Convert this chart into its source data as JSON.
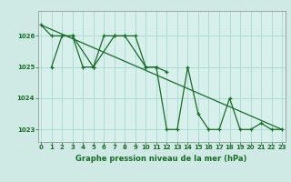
{
  "title": "Graphe pression niveau de la mer (hPa)",
  "background_color": "#cfe9e5",
  "plot_bg_color": "#d8f0ec",
  "grid_color": "#a8d8d0",
  "line_color": "#1a6b2a",
  "tick_color": "#1a6b2a",
  "spine_color": "#888888",
  "y1_x": [
    0,
    1,
    2,
    3,
    4,
    5,
    6,
    7,
    8,
    9,
    10,
    11,
    12
  ],
  "y1_y": [
    1026.35,
    1026.0,
    1026.0,
    1026.0,
    1025.0,
    1025.0,
    1026.0,
    1026.0,
    1026.0,
    1026.0,
    1025.0,
    1025.0,
    1024.85
  ],
  "y2_x": [
    1,
    2,
    3,
    5,
    7,
    8,
    10,
    11,
    12,
    13,
    14,
    15,
    16,
    17,
    18,
    19,
    20,
    21,
    22,
    23
  ],
  "y2_y": [
    1025.0,
    1026.0,
    1026.0,
    1025.0,
    1026.0,
    1026.0,
    1025.0,
    1025.0,
    1023.0,
    1023.0,
    1025.0,
    1023.5,
    1023.0,
    1023.0,
    1024.0,
    1023.0,
    1023.0,
    1023.2,
    1023.0,
    1023.0
  ],
  "trend_x": [
    0,
    23
  ],
  "trend_y": [
    1026.35,
    1023.0
  ],
  "xlim": [
    -0.3,
    23.3
  ],
  "ylim": [
    1022.6,
    1026.8
  ],
  "yticks": [
    1023,
    1024,
    1025,
    1026
  ],
  "xticks": [
    0,
    1,
    2,
    3,
    4,
    5,
    6,
    7,
    8,
    9,
    10,
    11,
    12,
    13,
    14,
    15,
    16,
    17,
    18,
    19,
    20,
    21,
    22,
    23
  ],
  "xlabel_fontsize": 6.0,
  "tick_fontsize": 5.0,
  "linewidth": 0.9,
  "markersize": 3.5,
  "marker_lw": 0.9
}
